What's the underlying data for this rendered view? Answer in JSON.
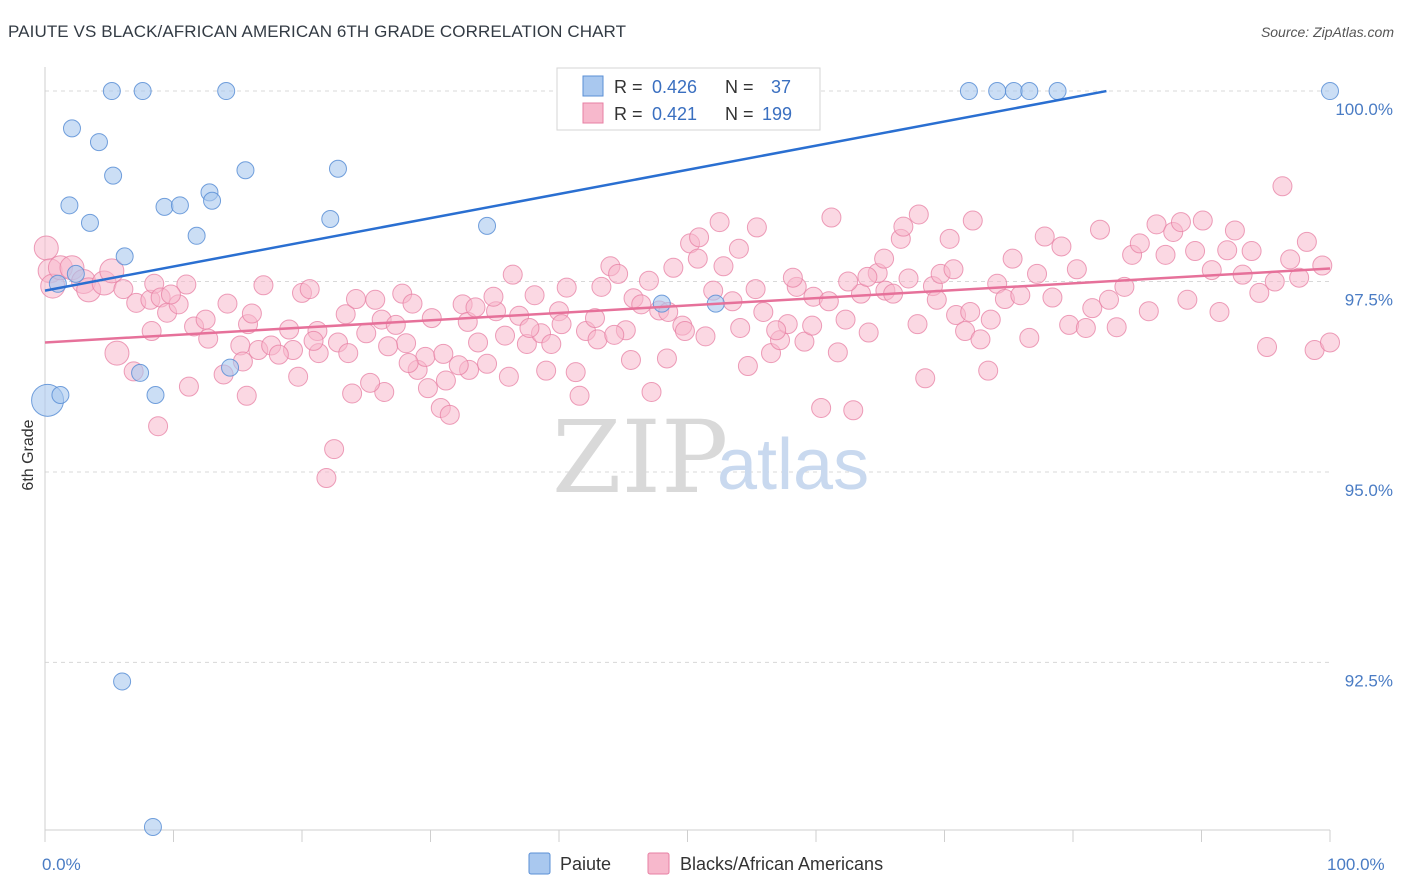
{
  "header": {
    "title": "PAIUTE VS BLACK/AFRICAN AMERICAN 6TH GRADE CORRELATION CHART",
    "source": "Source: ZipAtlas.com"
  },
  "watermark": {
    "zip": "ZIP",
    "atlas": "atlas"
  },
  "legend_box": {
    "rows": [
      {
        "r_label": "R =",
        "r_value": "0.426",
        "n_label": "N =",
        "n_value": "37"
      },
      {
        "r_label": "R =",
        "r_value": "0.421",
        "n_label": "N =",
        "n_value": "199"
      }
    ]
  },
  "bottom_legend": {
    "series1": "Paiute",
    "series2": "Blacks/African Americans"
  },
  "colors": {
    "paiute_fill": "#a9c8ef",
    "paiute_stroke": "#5a8fd6",
    "paiute_line": "#2a6fd1",
    "black_fill": "#f7b8cc",
    "black_stroke": "#e77fa3",
    "black_line": "#e6719a",
    "tick_label": "#4a7cc4",
    "grid": "#d8d8d8"
  },
  "chart_data": {
    "type": "scatter",
    "title": "PAIUTE VS BLACK/AFRICAN AMERICAN 6TH GRADE CORRELATION CHART",
    "xlabel": "",
    "ylabel": "6th Grade",
    "xlim": [
      0,
      100
    ],
    "ylim": [
      90.3,
      100.25
    ],
    "x_tick_labels": [
      "0.0%",
      "100.0%"
    ],
    "y_ticks": [
      {
        "value": 100.0,
        "label": "100.0%"
      },
      {
        "value": 97.5,
        "label": "97.5%"
      },
      {
        "value": 95.0,
        "label": "95.0%"
      },
      {
        "value": 92.5,
        "label": "92.5%"
      }
    ],
    "grid": true,
    "series": [
      {
        "name": "Paiute",
        "R": 0.426,
        "N": 37,
        "trend": {
          "x": [
            0,
            82.6
          ],
          "y": [
            97.38,
            100.0
          ]
        },
        "points": [
          [
            0.2,
            95.94
          ],
          [
            1.2,
            96.01
          ],
          [
            1.0,
            97.47
          ],
          [
            2.4,
            97.6
          ],
          [
            2.1,
            99.51
          ],
          [
            4.2,
            99.33
          ],
          [
            5.2,
            100.0
          ],
          [
            7.6,
            100.0
          ],
          [
            14.1,
            100.0
          ],
          [
            5.3,
            98.89
          ],
          [
            7.4,
            96.3
          ],
          [
            8.6,
            96.01
          ],
          [
            1.9,
            98.5
          ],
          [
            3.5,
            98.27
          ],
          [
            6.2,
            97.83
          ],
          [
            9.3,
            98.48
          ],
          [
            10.5,
            98.5
          ],
          [
            12.8,
            98.67
          ],
          [
            11.8,
            98.1
          ],
          [
            13.0,
            98.56
          ],
          [
            15.6,
            98.96
          ],
          [
            22.8,
            98.98
          ],
          [
            22.2,
            98.32
          ],
          [
            14.4,
            96.37
          ],
          [
            34.4,
            98.23
          ],
          [
            48.0,
            97.21
          ],
          [
            52.2,
            97.21
          ],
          [
            6.0,
            92.25
          ],
          [
            8.4,
            90.34
          ],
          [
            71.9,
            100.0
          ],
          [
            74.1,
            100.0
          ],
          [
            75.4,
            100.0
          ],
          [
            76.6,
            100.0
          ],
          [
            78.8,
            100.0
          ],
          [
            100.0,
            100.0
          ],
          [
            49.5,
            100.0
          ],
          [
            49.9,
            100.0
          ]
        ]
      },
      {
        "name": "Blacks/African Americans",
        "R": 0.421,
        "N": 199,
        "trend": {
          "x": [
            0,
            100
          ],
          "y": [
            96.7,
            97.67
          ]
        },
        "points": [
          [
            0.1,
            97.94
          ],
          [
            0.4,
            97.64
          ],
          [
            0.6,
            97.44
          ],
          [
            1.2,
            97.68
          ],
          [
            2.1,
            97.68
          ],
          [
            3.0,
            97.5
          ],
          [
            3.4,
            97.39
          ],
          [
            4.6,
            97.48
          ],
          [
            5.2,
            97.64
          ],
          [
            6.1,
            97.4
          ],
          [
            7.1,
            97.22
          ],
          [
            8.2,
            97.26
          ],
          [
            8.5,
            97.47
          ],
          [
            9.0,
            97.29
          ],
          [
            9.5,
            97.09
          ],
          [
            10.4,
            97.2
          ],
          [
            11.0,
            97.46
          ],
          [
            11.6,
            96.91
          ],
          [
            12.5,
            97.0
          ],
          [
            8.8,
            95.6
          ],
          [
            14.2,
            97.21
          ],
          [
            15.2,
            96.66
          ],
          [
            15.4,
            96.45
          ],
          [
            15.8,
            96.94
          ],
          [
            16.6,
            96.6
          ],
          [
            17.0,
            97.45
          ],
          [
            17.6,
            96.66
          ],
          [
            19.0,
            96.87
          ],
          [
            19.3,
            96.6
          ],
          [
            20.0,
            97.35
          ],
          [
            20.6,
            97.4
          ],
          [
            21.2,
            96.85
          ],
          [
            21.3,
            96.56
          ],
          [
            22.8,
            96.7
          ],
          [
            23.4,
            97.07
          ],
          [
            23.6,
            96.56
          ],
          [
            24.2,
            97.27
          ],
          [
            25.0,
            96.82
          ],
          [
            25.7,
            97.26
          ],
          [
            26.4,
            96.05
          ],
          [
            26.2,
            97.0
          ],
          [
            27.3,
            96.93
          ],
          [
            27.8,
            97.34
          ],
          [
            28.1,
            96.69
          ],
          [
            28.6,
            97.21
          ],
          [
            29.0,
            96.34
          ],
          [
            29.6,
            96.51
          ],
          [
            30.1,
            97.02
          ],
          [
            30.8,
            95.84
          ],
          [
            31.2,
            96.2
          ],
          [
            31.5,
            95.75
          ],
          [
            32.5,
            97.2
          ],
          [
            32.9,
            96.97
          ],
          [
            33.5,
            97.16
          ],
          [
            33.0,
            96.34
          ],
          [
            34.4,
            96.42
          ],
          [
            35.1,
            97.11
          ],
          [
            35.8,
            96.79
          ],
          [
            36.4,
            97.59
          ],
          [
            36.9,
            97.05
          ],
          [
            37.5,
            96.68
          ],
          [
            38.1,
            97.32
          ],
          [
            38.6,
            96.82
          ],
          [
            39.4,
            96.68
          ],
          [
            40.0,
            97.11
          ],
          [
            40.6,
            97.42
          ],
          [
            41.3,
            96.31
          ],
          [
            42.1,
            96.85
          ],
          [
            42.8,
            97.02
          ],
          [
            43.3,
            97.43
          ],
          [
            44.0,
            97.7
          ],
          [
            44.6,
            97.6
          ],
          [
            45.2,
            96.86
          ],
          [
            45.8,
            97.28
          ],
          [
            46.4,
            97.2
          ],
          [
            47.0,
            97.51
          ],
          [
            47.8,
            97.12
          ],
          [
            48.4,
            96.49
          ],
          [
            48.9,
            97.68
          ],
          [
            49.6,
            96.92
          ],
          [
            50.2,
            98.0
          ],
          [
            50.8,
            97.8
          ],
          [
            51.4,
            96.78
          ],
          [
            52.0,
            97.38
          ],
          [
            52.8,
            97.7
          ],
          [
            53.5,
            97.24
          ],
          [
            54.1,
            96.89
          ],
          [
            54.7,
            96.39
          ],
          [
            55.3,
            97.4
          ],
          [
            55.9,
            97.1
          ],
          [
            56.5,
            96.56
          ],
          [
            57.2,
            96.73
          ],
          [
            57.8,
            96.94
          ],
          [
            58.5,
            97.43
          ],
          [
            59.1,
            96.71
          ],
          [
            59.8,
            97.3
          ],
          [
            60.4,
            95.84
          ],
          [
            61.0,
            97.24
          ],
          [
            61.7,
            96.57
          ],
          [
            62.3,
            97.0
          ],
          [
            62.9,
            95.81
          ],
          [
            63.5,
            97.34
          ],
          [
            64.1,
            96.83
          ],
          [
            64.8,
            97.61
          ],
          [
            65.4,
            97.38
          ],
          [
            66.0,
            97.34
          ],
          [
            66.6,
            98.06
          ],
          [
            67.2,
            97.54
          ],
          [
            67.9,
            96.94
          ],
          [
            68.5,
            96.23
          ],
          [
            69.1,
            97.44
          ],
          [
            69.7,
            97.6
          ],
          [
            70.4,
            98.06
          ],
          [
            70.9,
            97.06
          ],
          [
            71.6,
            96.85
          ],
          [
            72.2,
            98.3
          ],
          [
            72.8,
            96.74
          ],
          [
            73.4,
            96.33
          ],
          [
            74.1,
            97.47
          ],
          [
            74.7,
            97.27
          ],
          [
            75.3,
            97.8
          ],
          [
            75.9,
            97.32
          ],
          [
            76.6,
            96.76
          ],
          [
            77.2,
            97.6
          ],
          [
            77.8,
            98.09
          ],
          [
            78.4,
            97.29
          ],
          [
            79.1,
            97.96
          ],
          [
            79.7,
            96.93
          ],
          [
            80.3,
            97.66
          ],
          [
            81.0,
            96.89
          ],
          [
            81.5,
            97.15
          ],
          [
            82.1,
            98.18
          ],
          [
            82.8,
            97.26
          ],
          [
            83.4,
            96.9
          ],
          [
            84.0,
            97.43
          ],
          [
            84.6,
            97.85
          ],
          [
            85.2,
            98.0
          ],
          [
            85.9,
            97.11
          ],
          [
            86.5,
            98.25
          ],
          [
            87.2,
            97.85
          ],
          [
            87.8,
            98.15
          ],
          [
            88.4,
            98.28
          ],
          [
            88.9,
            97.26
          ],
          [
            89.5,
            97.9
          ],
          [
            90.1,
            98.3
          ],
          [
            90.8,
            97.65
          ],
          [
            91.4,
            97.1
          ],
          [
            92.0,
            97.91
          ],
          [
            92.6,
            98.17
          ],
          [
            93.2,
            97.59
          ],
          [
            93.9,
            97.9
          ],
          [
            94.5,
            97.35
          ],
          [
            95.1,
            96.64
          ],
          [
            95.7,
            97.5
          ],
          [
            96.3,
            98.75
          ],
          [
            96.9,
            97.79
          ],
          [
            97.6,
            97.55
          ],
          [
            98.2,
            98.02
          ],
          [
            98.8,
            96.6
          ],
          [
            99.4,
            97.71
          ],
          [
            100.0,
            96.7
          ],
          [
            5.6,
            96.56
          ],
          [
            6.9,
            96.32
          ],
          [
            8.3,
            96.85
          ],
          [
            9.8,
            97.33
          ],
          [
            11.2,
            96.12
          ],
          [
            12.7,
            96.75
          ],
          [
            13.9,
            96.28
          ],
          [
            15.7,
            96.0
          ],
          [
            16.1,
            97.08
          ],
          [
            18.2,
            96.54
          ],
          [
            19.7,
            96.25
          ],
          [
            20.9,
            96.72
          ],
          [
            21.9,
            94.92
          ],
          [
            22.5,
            95.3
          ],
          [
            23.9,
            96.03
          ],
          [
            25.3,
            96.17
          ],
          [
            26.7,
            96.65
          ],
          [
            28.3,
            96.43
          ],
          [
            29.8,
            96.1
          ],
          [
            31.0,
            96.55
          ],
          [
            32.2,
            96.4
          ],
          [
            33.7,
            96.7
          ],
          [
            34.9,
            97.3
          ],
          [
            36.1,
            96.25
          ],
          [
            37.7,
            96.89
          ],
          [
            39.0,
            96.33
          ],
          [
            40.2,
            96.94
          ],
          [
            41.6,
            96.0
          ],
          [
            43.0,
            96.74
          ],
          [
            44.3,
            96.8
          ],
          [
            45.6,
            96.47
          ],
          [
            47.2,
            96.05
          ],
          [
            48.5,
            97.1
          ],
          [
            49.8,
            96.85
          ],
          [
            50.9,
            98.08
          ],
          [
            52.5,
            98.28
          ],
          [
            54.0,
            97.93
          ],
          [
            55.4,
            98.21
          ],
          [
            56.9,
            96.86
          ],
          [
            58.2,
            97.55
          ],
          [
            59.7,
            96.92
          ],
          [
            61.2,
            98.34
          ],
          [
            62.5,
            97.5
          ],
          [
            64.0,
            97.56
          ],
          [
            65.3,
            97.8
          ],
          [
            66.8,
            98.22
          ],
          [
            68.0,
            98.38
          ],
          [
            69.4,
            97.26
          ],
          [
            70.7,
            97.66
          ],
          [
            72.0,
            97.1
          ],
          [
            73.6,
            97.0
          ]
        ]
      }
    ]
  }
}
